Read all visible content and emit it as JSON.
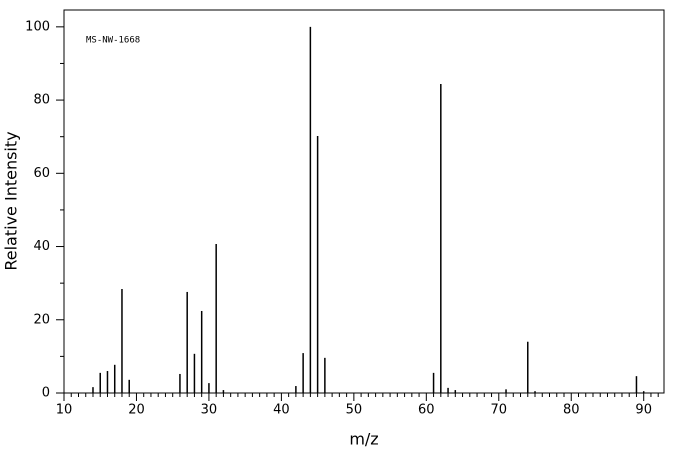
{
  "chart_data": {
    "type": "stick",
    "annotation": "MS-NW-1668",
    "x_label": "m/z",
    "y_label": "Relative Intensity",
    "x": [
      14,
      15,
      16,
      17,
      18,
      19,
      26,
      27,
      28,
      29,
      30,
      31,
      32,
      42,
      43,
      44,
      45,
      46,
      61,
      62,
      63,
      64,
      71,
      74,
      75,
      89,
      90
    ],
    "values": [
      1.6,
      5.5,
      6,
      7.7,
      28.4,
      3.6,
      5.2,
      27.6,
      10.7,
      22.4,
      2.7,
      40.7,
      0.8,
      1.9,
      10.9,
      100,
      70.2,
      9.6,
      5.5,
      84.4,
      1.4,
      0.8,
      1,
      14,
      0.5,
      4.6,
      0.5
    ],
    "color": "#000000",
    "xlim": [
      10,
      92.8
    ],
    "ylim": [
      0,
      104.6
    ],
    "xticks": [
      10,
      20,
      30,
      40,
      50,
      60,
      70,
      80,
      90
    ],
    "yticks": [
      0,
      20,
      40,
      60,
      80,
      100
    ],
    "xminorticks": [
      11,
      12,
      13,
      14,
      15,
      16,
      17,
      18,
      19,
      21,
      22,
      23,
      24,
      25,
      26,
      27,
      28,
      29,
      31,
      32,
      33,
      34,
      35,
      36,
      37,
      38,
      39,
      41,
      42,
      43,
      44,
      45,
      46,
      47,
      48,
      49,
      51,
      52,
      53,
      54,
      55,
      56,
      57,
      58,
      59,
      61,
      62,
      63,
      64,
      65,
      66,
      67,
      68,
      69,
      71,
      72,
      73,
      74,
      75,
      76,
      77,
      78,
      79,
      81,
      82,
      83,
      84,
      85,
      86,
      87,
      88,
      89,
      91,
      92
    ],
    "yminorticks": [
      10,
      30,
      50,
      70,
      90
    ]
  }
}
